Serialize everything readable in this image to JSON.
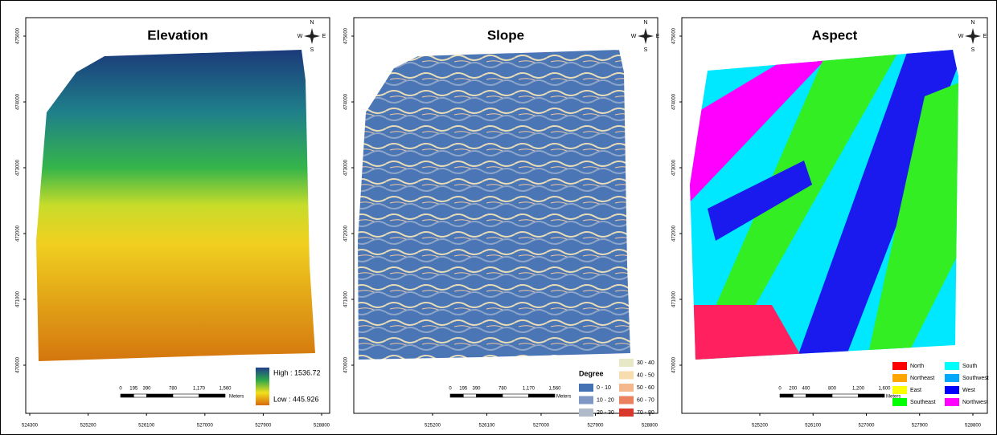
{
  "panels": [
    {
      "title": "Elevation",
      "y_axis_labels": [
        475000,
        474000,
        473000,
        472000,
        471000,
        470000
      ],
      "x_axis_labels": [
        524300,
        525200,
        526100,
        527000,
        527900,
        528800
      ],
      "scale_bar": {
        "labels": [
          "0",
          "195",
          "390",
          "780",
          "1,170",
          "1,560"
        ],
        "unit": "Meters"
      },
      "compass": {
        "n": "N",
        "s": "S",
        "w": "W",
        "e": "E"
      },
      "legend": {
        "high": "High : 1536.72",
        "low": "Low : 445.926",
        "colors": [
          "#1f3f8a",
          "#2ea84a",
          "#f2e01a",
          "#d8680e"
        ]
      }
    },
    {
      "title": "Slope",
      "y_axis_labels": [
        475000,
        474000,
        473000,
        472000,
        471000,
        470000
      ],
      "x_axis_labels": [
        525200,
        526100,
        527000,
        527900,
        528800
      ],
      "scale_bar": {
        "labels": [
          "0",
          "195",
          "390",
          "780",
          "1,170",
          "1,560"
        ],
        "unit": "Meters"
      },
      "compass": {
        "n": "N",
        "s": "S",
        "w": "W",
        "e": "E"
      },
      "legend": {
        "title": "Degree",
        "classes": [
          {
            "label": "0 - 10",
            "color": "#4470b4"
          },
          {
            "label": "10 - 20",
            "color": "#7f97c4"
          },
          {
            "label": "20 - 30",
            "color": "#b1bac8"
          },
          {
            "label": "30 - 40",
            "color": "#e6e8c6"
          },
          {
            "label": "40 - 50",
            "color": "#f6dcae"
          },
          {
            "label": "50 - 60",
            "color": "#f4b88c"
          },
          {
            "label": "60 - 70",
            "color": "#ea8260"
          },
          {
            "label": "70 - 80",
            "color": "#d8392c"
          }
        ]
      }
    },
    {
      "title": "Aspect",
      "y_axis_labels": [
        475000,
        474000,
        473000,
        472000,
        471000,
        470000
      ],
      "x_axis_labels": [
        525200,
        526100,
        527000,
        527900,
        528800
      ],
      "scale_bar": {
        "labels": [
          "0",
          "200",
          "400",
          "800",
          "1,200",
          "1,600"
        ],
        "unit": "Meters"
      },
      "compass": {
        "n": "N",
        "s": "S",
        "w": "W",
        "e": "E"
      },
      "legend": {
        "classes": [
          {
            "label": "North",
            "color": "#ff0000"
          },
          {
            "label": "Northeast",
            "color": "#ffa500"
          },
          {
            "label": "East",
            "color": "#ffff00"
          },
          {
            "label": "Southeast",
            "color": "#00ff00"
          },
          {
            "label": "South",
            "color": "#00ffff"
          },
          {
            "label": "Southwest",
            "color": "#00a8ff"
          },
          {
            "label": "West",
            "color": "#0000ff"
          },
          {
            "label": "Northwest",
            "color": "#ff00ff"
          }
        ]
      }
    }
  ]
}
